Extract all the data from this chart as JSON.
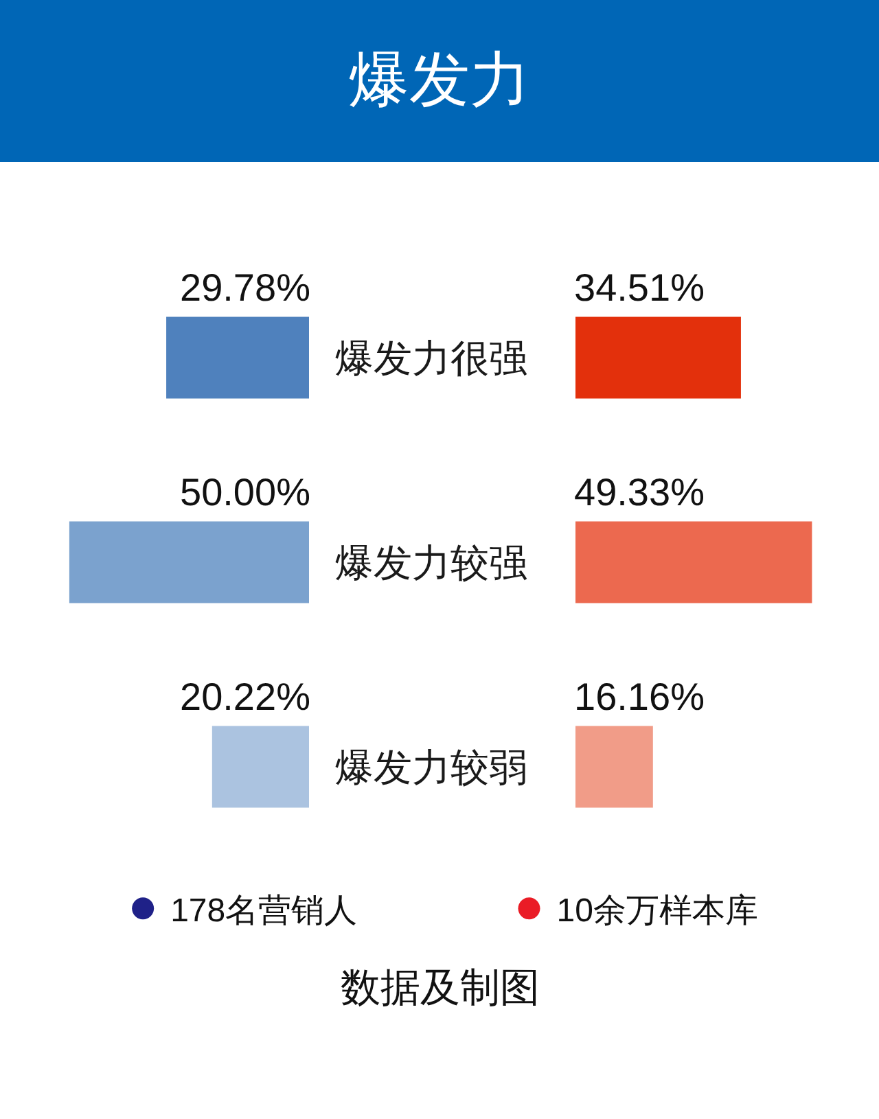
{
  "chart_data": [
    {
      "type": "bar",
      "orientation": "horizontal",
      "title": "爆发力",
      "categories": [
        "爆发力很强",
        "爆发力较强",
        "爆发力较弱"
      ],
      "series": [
        {
          "name": "178名营销人",
          "color": "#1f2188",
          "colors": [
            "#4f81bd",
            "#7ba2ce",
            "#abc3e0"
          ],
          "values": [
            29.78,
            50.0,
            20.22
          ],
          "value_labels": [
            "29.78%",
            "50.00%",
            "20.22%"
          ]
        }
      ],
      "tick_labels": "y",
      "legend": "bottom",
      "annotations": [
        "数据及制图"
      ]
    },
    {
      "type": "bar",
      "orientation": "horizontal",
      "categories": [
        null,
        null,
        null
      ],
      "series": [
        {
          "name": "10余万样本库",
          "color": "#ea1c26",
          "colors": [
            "#e3300c",
            "#ec694f",
            "#f19c88"
          ],
          "values": [
            34.51,
            49.33,
            16.16
          ],
          "value_labels": [
            "34.51%",
            "49.33%",
            "16.16%"
          ]
        }
      ],
      "legend": "bottom"
    }
  ]
}
